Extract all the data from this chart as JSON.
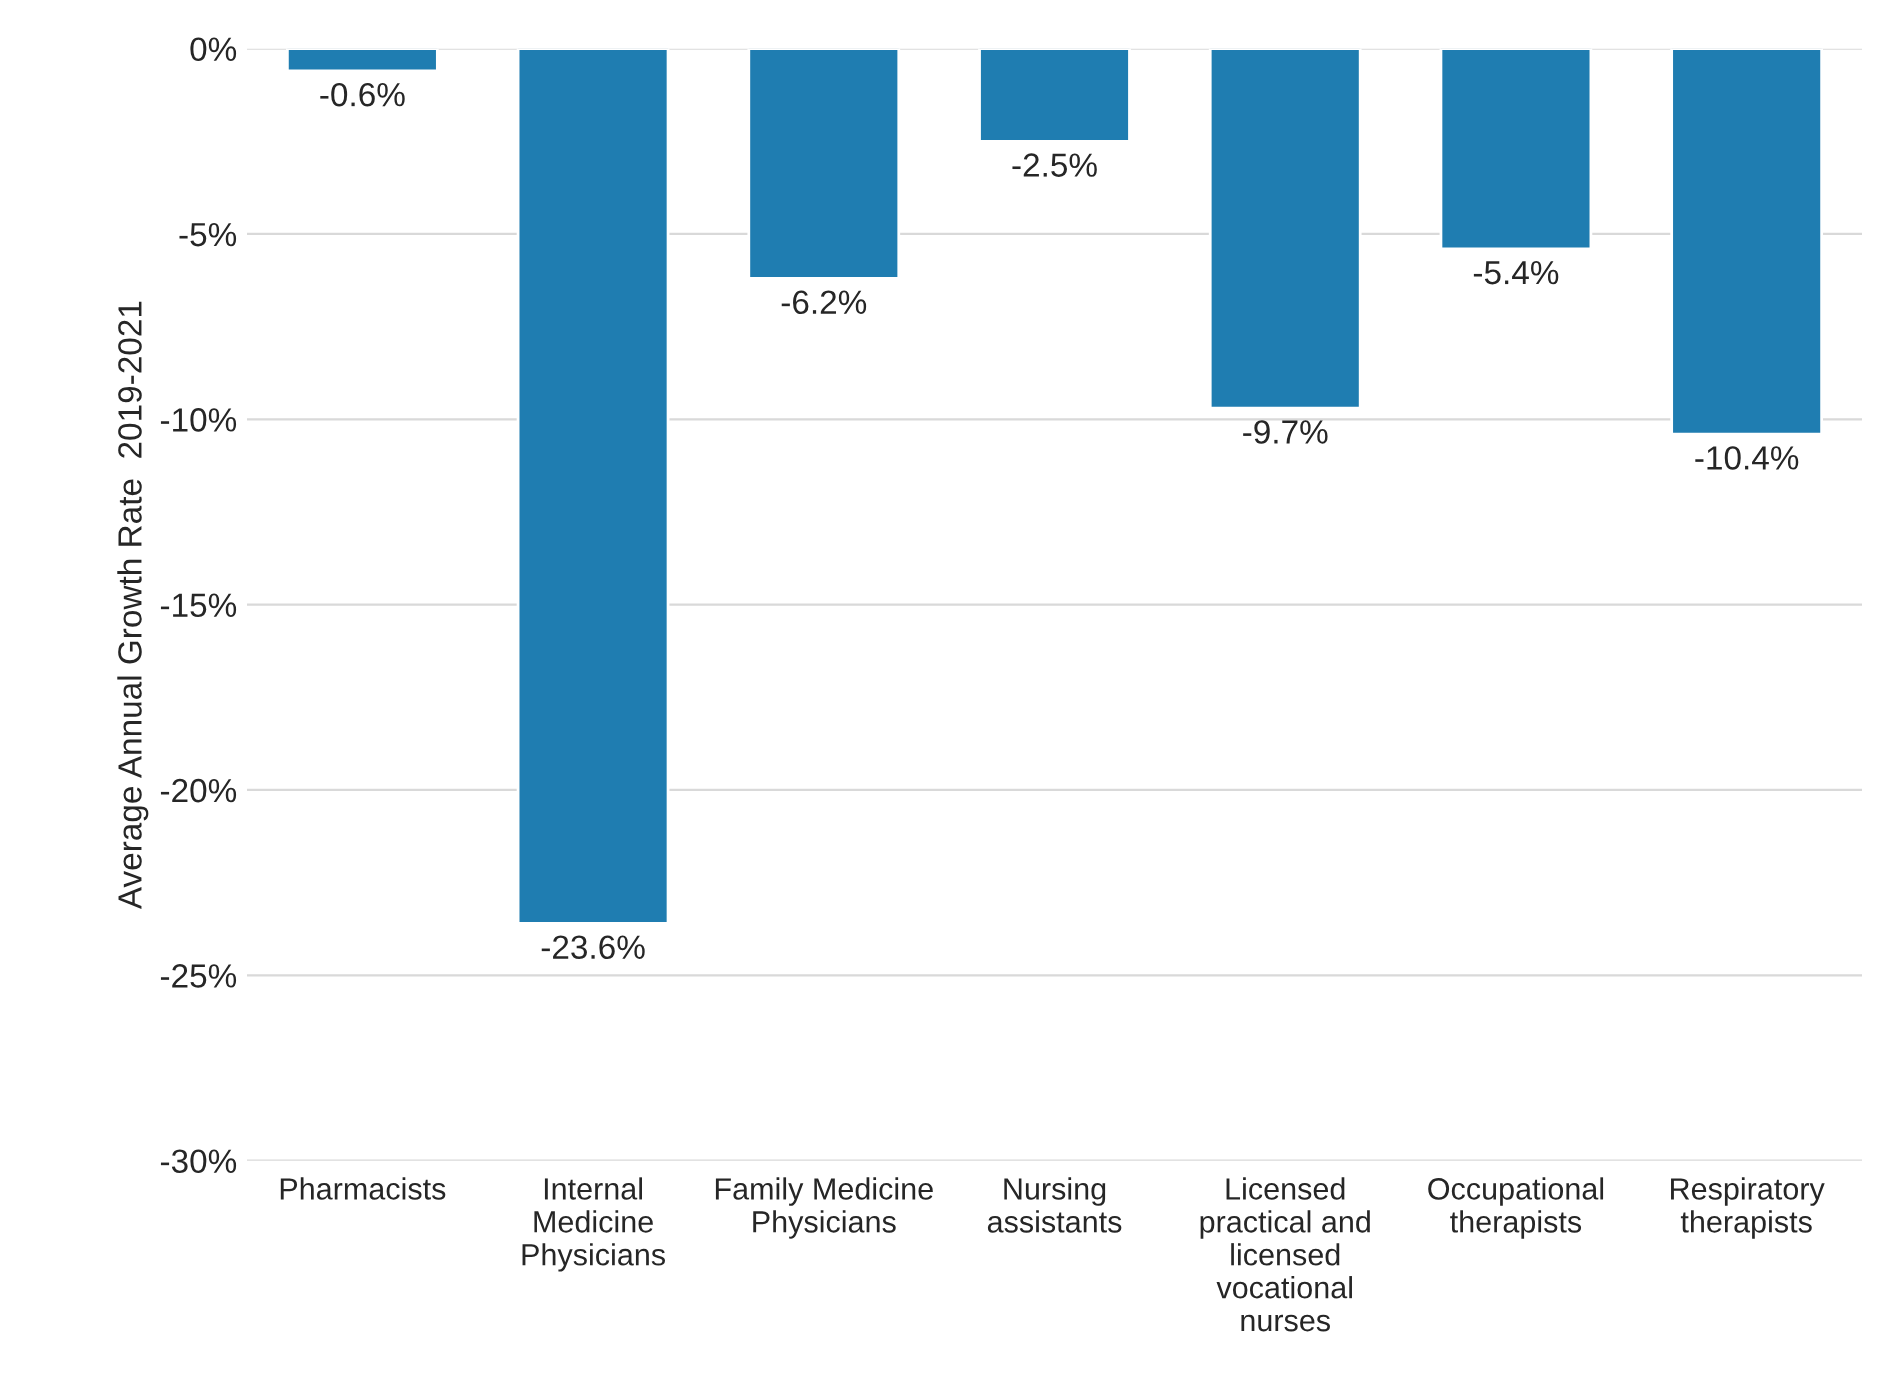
{
  "chart_data": {
    "type": "bar",
    "ylabel": "Average Annual Growth Rate  2019-2021",
    "categories": [
      "Pharmacists",
      "Internal\nMedicine\nPhysicians",
      "Family Medicine\nPhysicians",
      "Nursing\nassistants",
      "Licensed\npractical and\nlicensed\nvocational\nnurses",
      "Occupational\ntherapists",
      "Respiratory\ntherapists"
    ],
    "values": [
      -0.6,
      -23.6,
      -6.2,
      -2.5,
      -9.7,
      -5.4,
      -10.4
    ],
    "value_labels": [
      "-0.6%",
      "-23.6%",
      "-6.2%",
      "-2.5%",
      "-9.7%",
      "-5.4%",
      "-10.4%"
    ],
    "color": "#1f7db1",
    "ylim": [
      -30,
      0
    ],
    "yticks": [
      {
        "value": -30,
        "label": "-30%"
      },
      {
        "value": -25,
        "label": "-25%"
      },
      {
        "value": -20,
        "label": "-20%"
      },
      {
        "value": -15,
        "label": "-15%"
      },
      {
        "value": -10,
        "label": "-10%"
      },
      {
        "value": -5,
        "label": "-5%"
      },
      {
        "value": 0,
        "label": "0%"
      }
    ],
    "grid": "y"
  }
}
